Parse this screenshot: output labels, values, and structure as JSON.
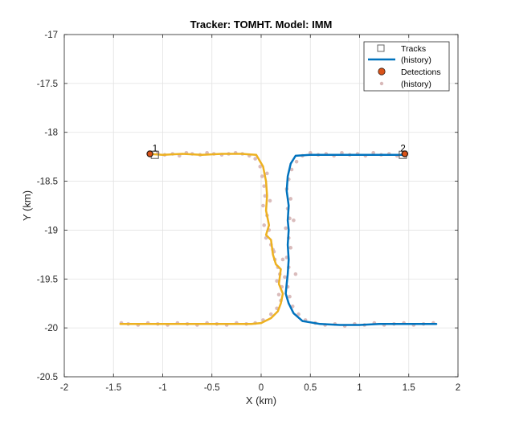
{
  "chart_data": {
    "type": "line",
    "title": "Tracker: TOMHT. Model: IMM",
    "xlabel": "X (km)",
    "ylabel": "Y (km)",
    "xlim": [
      -2,
      2
    ],
    "ylim": [
      -20.5,
      -17
    ],
    "xticks": [
      -2,
      -1.5,
      -1,
      -0.5,
      0,
      0.5,
      1,
      1.5,
      2
    ],
    "yticks": [
      -17,
      -17.5,
      -18,
      -18.5,
      -19,
      -19.5,
      -20,
      -20.5
    ],
    "xtick_labels": [
      "-2",
      "-1.5",
      "-1",
      "-0.5",
      "0",
      "0.5",
      "1",
      "1.5",
      "2"
    ],
    "ytick_labels": [
      "-17",
      "-17.5",
      "-18",
      "-18.5",
      "-19",
      "-19.5",
      "-20",
      "-20.5"
    ],
    "grid": true,
    "legend_position": "top-right",
    "legend": [
      {
        "label": "Tracks",
        "marker": "square-open"
      },
      {
        "label": "(history)",
        "marker": "line"
      },
      {
        "label": "Detections",
        "marker": "circle-filled"
      },
      {
        "label": "(history)",
        "marker": "dot"
      }
    ],
    "colors": {
      "track1_history": "#EDB120",
      "track2_history": "#0072BD",
      "detection_history": "#D8B8B8",
      "detection": "#D95319",
      "track_marker": "#555555"
    },
    "tracks": [
      {
        "label": "1",
        "x": -1.08,
        "y": -18.23
      },
      {
        "label": "2",
        "x": 1.44,
        "y": -18.23
      }
    ],
    "detections": [
      {
        "x": -1.13,
        "y": -18.22
      },
      {
        "x": 1.46,
        "y": -18.22
      }
    ],
    "series": [
      {
        "x": [
          -1.15,
          -1.0,
          -0.8,
          -0.6,
          -0.4,
          -0.2,
          -0.05,
          0.02,
          0.05,
          0.06,
          0.05,
          0.08,
          0.05,
          0.1,
          0.12,
          0.15,
          0.2,
          0.18,
          0.22,
          0.2,
          0.17,
          0.1,
          0.0,
          -0.1,
          -0.3,
          -0.5,
          -0.7,
          -0.9,
          -1.1,
          -1.3,
          -1.43
        ],
        "y": [
          -18.22,
          -18.23,
          -18.22,
          -18.23,
          -18.22,
          -18.22,
          -18.23,
          -18.35,
          -18.5,
          -18.65,
          -18.8,
          -18.95,
          -19.05,
          -19.1,
          -19.25,
          -19.35,
          -19.4,
          -19.55,
          -19.65,
          -19.75,
          -19.83,
          -19.9,
          -19.95,
          -19.96,
          -19.96,
          -19.96,
          -19.96,
          -19.96,
          -19.96,
          -19.96,
          -19.96
        ]
      },
      {
        "x": [
          1.46,
          1.3,
          1.1,
          0.9,
          0.7,
          0.5,
          0.35,
          0.3,
          0.27,
          0.26,
          0.28,
          0.27,
          0.28,
          0.27,
          0.28,
          0.27,
          0.26,
          0.25,
          0.28,
          0.33,
          0.42,
          0.6,
          0.8,
          1.0,
          1.2,
          1.4,
          1.6,
          1.78
        ],
        "y": [
          -18.23,
          -18.23,
          -18.23,
          -18.23,
          -18.23,
          -18.23,
          -18.24,
          -18.32,
          -18.45,
          -18.6,
          -18.75,
          -18.9,
          -19.0,
          -19.15,
          -19.3,
          -19.45,
          -19.55,
          -19.65,
          -19.75,
          -19.85,
          -19.93,
          -19.96,
          -19.97,
          -19.97,
          -19.96,
          -19.96,
          -19.96,
          -19.96
        ]
      }
    ],
    "detection_history": [
      [
        -1.12,
        -18.22
      ],
      [
        -1.05,
        -18.21
      ],
      [
        -0.98,
        -18.23
      ],
      [
        -0.9,
        -18.22
      ],
      [
        -0.83,
        -18.24
      ],
      [
        -0.76,
        -18.21
      ],
      [
        -0.7,
        -18.22
      ],
      [
        -0.62,
        -18.23
      ],
      [
        -0.55,
        -18.21
      ],
      [
        -0.48,
        -18.22
      ],
      [
        -0.4,
        -18.23
      ],
      [
        -0.33,
        -18.22
      ],
      [
        -0.26,
        -18.21
      ],
      [
        -0.19,
        -18.22
      ],
      [
        -0.12,
        -18.24
      ],
      [
        -0.06,
        -18.27
      ],
      [
        -0.01,
        -18.35
      ],
      [
        0.01,
        -18.45
      ],
      [
        0.03,
        -18.55
      ],
      [
        0.04,
        -18.65
      ],
      [
        0.02,
        -18.75
      ],
      [
        0.06,
        -18.85
      ],
      [
        0.03,
        -18.95
      ],
      [
        0.08,
        -19.0
      ],
      [
        0.05,
        -19.08
      ],
      [
        0.1,
        -19.15
      ],
      [
        0.13,
        -19.22
      ],
      [
        0.14,
        -19.3
      ],
      [
        0.17,
        -19.38
      ],
      [
        0.19,
        -19.45
      ],
      [
        0.16,
        -19.52
      ],
      [
        0.21,
        -19.58
      ],
      [
        0.18,
        -19.66
      ],
      [
        0.2,
        -19.72
      ],
      [
        0.16,
        -19.8
      ],
      [
        0.1,
        -19.86
      ],
      [
        0.02,
        -19.92
      ],
      [
        -0.06,
        -19.95
      ],
      [
        -0.15,
        -19.96
      ],
      [
        -0.25,
        -19.95
      ],
      [
        -0.35,
        -19.97
      ],
      [
        -0.45,
        -19.96
      ],
      [
        -0.55,
        -19.95
      ],
      [
        -0.65,
        -19.97
      ],
      [
        -0.75,
        -19.96
      ],
      [
        -0.85,
        -19.95
      ],
      [
        -0.95,
        -19.97
      ],
      [
        -1.05,
        -19.96
      ],
      [
        -1.15,
        -19.95
      ],
      [
        -1.25,
        -19.97
      ],
      [
        -1.35,
        -19.96
      ],
      [
        -1.42,
        -19.95
      ],
      [
        1.44,
        -18.22
      ],
      [
        1.38,
        -18.24
      ],
      [
        1.3,
        -18.22
      ],
      [
        1.22,
        -18.23
      ],
      [
        1.14,
        -18.21
      ],
      [
        1.06,
        -18.24
      ],
      [
        0.98,
        -18.22
      ],
      [
        0.9,
        -18.23
      ],
      [
        0.82,
        -18.21
      ],
      [
        0.74,
        -18.24
      ],
      [
        0.66,
        -18.22
      ],
      [
        0.58,
        -18.23
      ],
      [
        0.5,
        -18.21
      ],
      [
        0.42,
        -18.24
      ],
      [
        0.36,
        -18.3
      ],
      [
        0.31,
        -18.38
      ],
      [
        0.28,
        -18.48
      ],
      [
        0.26,
        -18.58
      ],
      [
        0.3,
        -18.68
      ],
      [
        0.27,
        -18.78
      ],
      [
        0.29,
        -18.88
      ],
      [
        0.25,
        -18.98
      ],
      [
        0.28,
        -19.08
      ],
      [
        0.3,
        -19.18
      ],
      [
        0.26,
        -19.28
      ],
      [
        0.28,
        -19.38
      ],
      [
        0.24,
        -19.48
      ],
      [
        0.27,
        -19.58
      ],
      [
        0.29,
        -19.68
      ],
      [
        0.32,
        -19.78
      ],
      [
        0.38,
        -19.86
      ],
      [
        0.45,
        -19.92
      ],
      [
        0.55,
        -19.95
      ],
      [
        0.65,
        -19.97
      ],
      [
        0.75,
        -19.96
      ],
      [
        0.85,
        -19.98
      ],
      [
        0.95,
        -19.96
      ],
      [
        1.05,
        -19.97
      ],
      [
        1.15,
        -19.95
      ],
      [
        1.25,
        -19.97
      ],
      [
        1.35,
        -19.96
      ],
      [
        1.45,
        -19.95
      ],
      [
        1.55,
        -19.97
      ],
      [
        1.65,
        -19.96
      ],
      [
        1.75,
        -19.95
      ],
      [
        0.09,
        -18.7
      ],
      [
        0.12,
        -19.2
      ],
      [
        0.35,
        -19.45
      ],
      [
        0.22,
        -19.3
      ],
      [
        0.06,
        -18.42
      ],
      [
        0.33,
        -18.9
      ]
    ]
  }
}
